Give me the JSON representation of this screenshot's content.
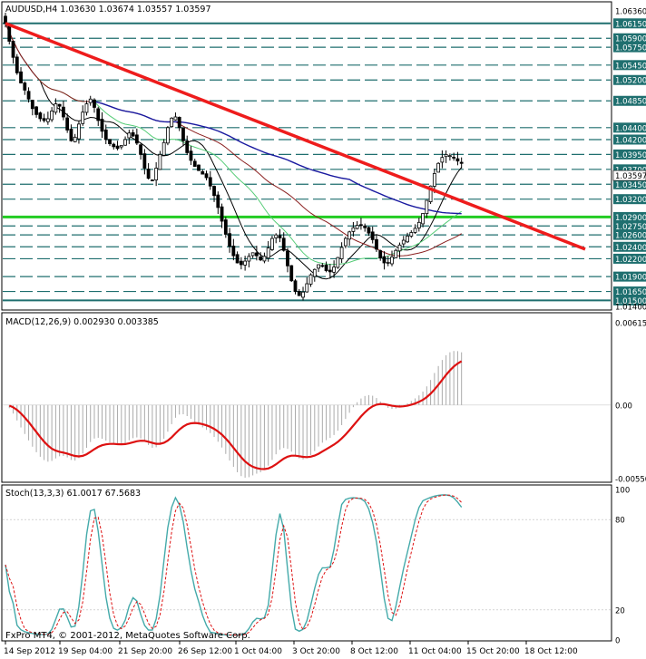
{
  "chart_data": [
    {
      "type": "candlestick",
      "title": "AUDUSD,H4 1.03630 1.03674 1.03557 1.03597",
      "symbol": "AUDUSD",
      "timeframe": "H4",
      "ohlc_last": {
        "open": 1.0363,
        "high": 1.03674,
        "low": 1.03557,
        "close": 1.03597
      },
      "current_price_label": "1.03597",
      "ylim": [
        1.014,
        1.0636
      ],
      "price_ticks": [
        "1.06360",
        "1.06150",
        "1.05900",
        "1.05750",
        "1.05450",
        "1.05200",
        "1.04850",
        "1.04400",
        "1.04200",
        "1.03950",
        "1.03700",
        "1.03450",
        "1.03200",
        "1.02900",
        "1.02750",
        "1.02600",
        "1.02400",
        "1.02200",
        "1.01900",
        "1.01650",
        "1.01500",
        "1.01400"
      ],
      "horizontal_levels": [
        1.0615,
        1.059,
        1.0575,
        1.0545,
        1.052,
        1.0485,
        1.044,
        1.042,
        1.0395,
        1.037,
        1.0345,
        1.032,
        1.029,
        1.0275,
        1.026,
        1.024,
        1.022,
        1.019,
        1.0165,
        1.015
      ],
      "support_level": 1.029,
      "trendline": {
        "from": [
          0,
          1.0615
        ],
        "to": [
          150,
          1.0236
        ]
      },
      "bar_count": 141,
      "closes": [
        1.0615,
        1.0585,
        1.0558,
        1.0532,
        1.0515,
        1.0503,
        1.0488,
        1.0472,
        1.0462,
        1.0455,
        1.0452,
        1.0455,
        1.0468,
        1.048,
        1.0476,
        1.0458,
        1.0436,
        1.0418,
        1.0424,
        1.0446,
        1.0466,
        1.048,
        1.0488,
        1.0474,
        1.0452,
        1.0434,
        1.042,
        1.0413,
        1.0408,
        1.0405,
        1.041,
        1.042,
        1.0431,
        1.0426,
        1.0414,
        1.0395,
        1.0372,
        1.0355,
        1.0352,
        1.0372,
        1.0395,
        1.0415,
        1.044,
        1.0456,
        1.0458,
        1.044,
        1.0418,
        1.0398,
        1.0385,
        1.0375,
        1.0368,
        1.0362,
        1.0356,
        1.0342,
        1.0326,
        1.0306,
        1.0283,
        1.0261,
        1.0241,
        1.0225,
        1.0213,
        1.021,
        1.0216,
        1.0224,
        1.023,
        1.0225,
        1.0218,
        1.0224,
        1.0238,
        1.0254,
        1.026,
        1.0255,
        1.0234,
        1.0208,
        1.0183,
        1.0165,
        1.0158,
        1.0164,
        1.0178,
        1.0193,
        1.0202,
        1.021,
        1.0208,
        1.02,
        1.0198,
        1.0206,
        1.0222,
        1.0239,
        1.0254,
        1.0265,
        1.0272,
        1.0276,
        1.0276,
        1.0272,
        1.0263,
        1.0252,
        1.0236,
        1.0221,
        1.0213,
        1.0214,
        1.0223,
        1.0234,
        1.0243,
        1.0251,
        1.0258,
        1.0264,
        1.0271,
        1.0281,
        1.0296,
        1.0318,
        1.0342,
        1.0363,
        1.038,
        1.039,
        1.0395,
        1.0393,
        1.0389,
        1.0384,
        1.038,
        1.0375,
        1.0373,
        1.037,
        1.037,
        1.0368,
        1.0366,
        1.0364,
        1.0362,
        1.0361,
        1.036,
        1.036,
        1.036,
        1.036,
        1.036,
        1.036,
        1.036,
        1.036,
        1.036,
        1.036,
        1.036,
        1.036,
        1.036
      ],
      "x_labels": [
        "14 Sep 2012",
        "19 Sep 04:00",
        "21 Sep 20:00",
        "26 Sep 12:00",
        "1 Oct 04:00",
        "3 Oct 20:00",
        "8 Oct 12:00",
        "11 Oct 04:00",
        "15 Oct 20:00",
        "18 Oct 12:00"
      ],
      "footer": "FxPro MT4, © 2001-2012, MetaQuotes Software Corp.",
      "colors": {
        "trendline": "#ee1c1c",
        "support": "#22cc22",
        "level": "#1f6f6f",
        "ma_navy": "#1a1aa0",
        "ma_black": "#000000",
        "ma_green": "#55cc77",
        "ma_brown": "#8b2020",
        "price_box": "#1f6f6f"
      }
    },
    {
      "type": "line",
      "title": "MACD(12,26,9) 0.002930 0.003385",
      "params": "12,26,9",
      "macd_value": 0.00293,
      "signal_value": 0.003385,
      "ylim": [
        -0.0055,
        0.00615
      ],
      "y_ticks": [
        "0.00615",
        "0.00",
        "-0.00550"
      ],
      "colors": {
        "histogram": "#aaaaaa",
        "signal": "#dd1111"
      }
    },
    {
      "type": "line",
      "title": "Stoch(13,3,3) 61.0017 67.5683",
      "params": "13,3,3",
      "main_value": 61.0017,
      "signal_value": 67.5683,
      "ylim": [
        0,
        100
      ],
      "y_ticks": [
        "100",
        "80",
        "20",
        "0"
      ],
      "levels": [
        80,
        20
      ],
      "colors": {
        "main": "#44aaaa",
        "signal": "#dd1111"
      }
    }
  ]
}
